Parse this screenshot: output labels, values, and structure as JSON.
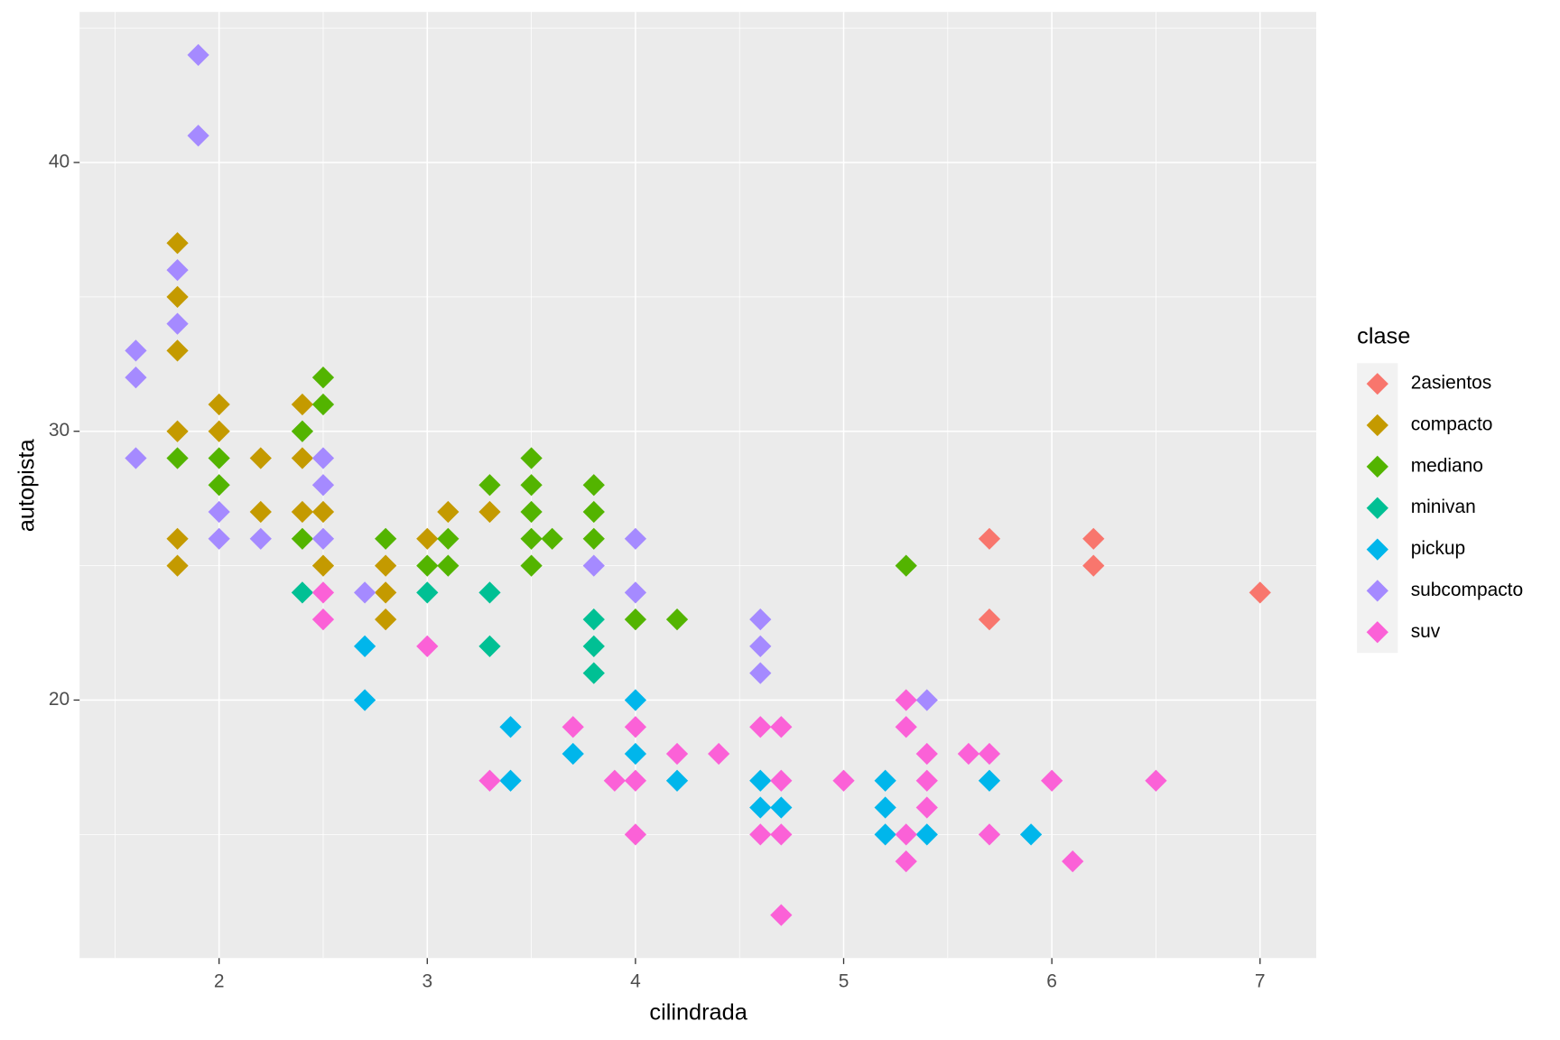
{
  "chart_data": {
    "type": "scatter",
    "x_label": "cilindrada",
    "y_label": "autopista",
    "legend_title": "clase",
    "xlim": [
      1.33,
      7.27
    ],
    "ylim": [
      10.4,
      45.6
    ],
    "xticks": [
      2,
      3,
      4,
      5,
      6,
      7
    ],
    "yticks": [
      20,
      30,
      40
    ],
    "xminor": [
      1.5,
      2.5,
      3.5,
      4.5,
      5.5,
      6.5
    ],
    "yminor": [
      15,
      25,
      35,
      45
    ],
    "grid": true,
    "legend": "right",
    "marker": "diamond",
    "series": [
      {
        "name": "2asientos",
        "color": "#F8766D",
        "x": [
          5.7,
          5.7,
          6.2,
          6.2,
          7
        ],
        "values": [
          26,
          23,
          26,
          25,
          24
        ]
      },
      {
        "name": "compacto",
        "color": "#C49A00",
        "x": [
          1.8,
          1.8,
          1.8,
          1.8,
          1.8,
          1.8,
          2,
          2,
          2.2,
          2.2,
          2.4,
          2.4,
          2.4,
          2.5,
          2.5,
          2.8,
          2.8,
          2.8,
          3,
          3.1,
          3.3
        ],
        "values": [
          37,
          35,
          33,
          30,
          26,
          25,
          31,
          30,
          29,
          27,
          31,
          29,
          27,
          27,
          25,
          25,
          24,
          23,
          26,
          27,
          27
        ]
      },
      {
        "name": "mediano",
        "color": "#53B400",
        "x": [
          1.8,
          2,
          2,
          2.4,
          2.4,
          2.5,
          2.5,
          2.8,
          3,
          3.1,
          3.1,
          3.3,
          3.5,
          3.5,
          3.5,
          3.5,
          3.5,
          3.6,
          3.8,
          3.8,
          3.8,
          4,
          4.2,
          5.3
        ],
        "values": [
          29,
          29,
          28,
          30,
          26,
          32,
          31,
          26,
          25,
          26,
          25,
          28,
          29,
          28,
          27,
          26,
          25,
          26,
          28,
          27,
          26,
          23,
          23,
          25
        ]
      },
      {
        "name": "minivan",
        "color": "#00C094",
        "x": [
          2.4,
          3,
          3.3,
          3.3,
          3.8,
          3.8,
          3.8
        ],
        "values": [
          24,
          24,
          24,
          22,
          23,
          22,
          21
        ]
      },
      {
        "name": "pickup",
        "color": "#00B6EB",
        "x": [
          2.7,
          2.7,
          3.4,
          3.4,
          3.7,
          4,
          4,
          4.2,
          4.6,
          4.6,
          4.7,
          5.2,
          5.2,
          5.2,
          5.4,
          5.7,
          5.9
        ],
        "values": [
          22,
          20,
          19,
          17,
          18,
          20,
          18,
          17,
          17,
          16,
          16,
          17,
          16,
          15,
          15,
          17,
          15
        ]
      },
      {
        "name": "subcompacto",
        "color": "#A58AFF",
        "x": [
          1.6,
          1.6,
          1.6,
          1.8,
          1.8,
          1.9,
          1.9,
          2,
          2,
          2.2,
          2.5,
          2.5,
          2.5,
          2.7,
          3.8,
          4,
          4,
          4.6,
          4.6,
          4.6,
          5.4
        ],
        "values": [
          33,
          32,
          29,
          36,
          34,
          44,
          41,
          27,
          26,
          26,
          29,
          28,
          26,
          24,
          25,
          26,
          24,
          23,
          22,
          21,
          20
        ]
      },
      {
        "name": "suv",
        "color": "#FB61D7",
        "x": [
          2.5,
          2.5,
          3,
          3.3,
          3.7,
          3.9,
          4,
          4,
          4,
          4.2,
          4.4,
          4.6,
          4.6,
          4.7,
          4.7,
          4.7,
          4.7,
          5,
          5.3,
          5.3,
          5.3,
          5.3,
          5.4,
          5.4,
          5.4,
          5.6,
          5.7,
          5.7,
          6,
          6.1,
          6.5
        ],
        "values": [
          24,
          23,
          22,
          17,
          19,
          17,
          19,
          17,
          15,
          18,
          18,
          19,
          15,
          19,
          17,
          15,
          12,
          17,
          20,
          19,
          15,
          14,
          18,
          17,
          16,
          18,
          18,
          15,
          17,
          14,
          17
        ]
      }
    ]
  }
}
